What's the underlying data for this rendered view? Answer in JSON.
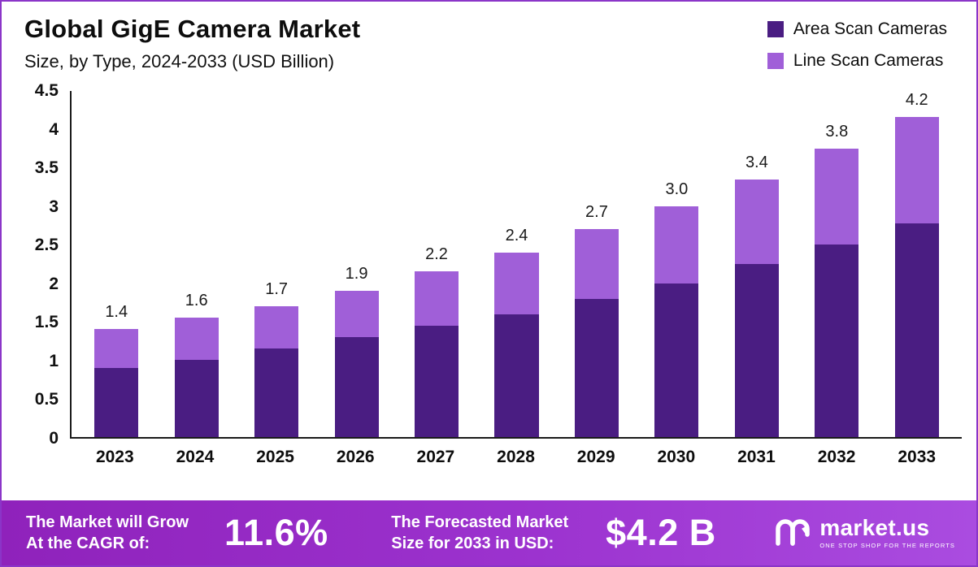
{
  "header": {
    "title": "Global GigE Camera Market",
    "subtitle": "Size, by Type, 2024-2033 (USD Billion)"
  },
  "legend": [
    {
      "label": "Area Scan Cameras",
      "color": "#4a1d82"
    },
    {
      "label": "Line Scan Cameras",
      "color": "#a05fd8"
    }
  ],
  "chart_data": {
    "type": "bar",
    "stacked": true,
    "title": "Global GigE Camera Market Size, by Type, 2024-2033 (USD Billion)",
    "categories": [
      "2023",
      "2024",
      "2025",
      "2026",
      "2027",
      "2028",
      "2029",
      "2030",
      "2031",
      "2032",
      "2033"
    ],
    "series": [
      {
        "name": "Area Scan Cameras",
        "color": "#4a1d82",
        "values": [
          0.9,
          1.0,
          1.15,
          1.3,
          1.45,
          1.6,
          1.8,
          2.0,
          2.25,
          2.5,
          2.8
        ]
      },
      {
        "name": "Line Scan Cameras",
        "color": "#a05fd8",
        "values": [
          0.5,
          0.55,
          0.55,
          0.6,
          0.7,
          0.8,
          0.9,
          1.0,
          1.1,
          1.25,
          1.4
        ]
      }
    ],
    "totals": [
      1.4,
      1.6,
      1.7,
      1.9,
      2.2,
      2.4,
      2.7,
      3.0,
      3.4,
      3.8,
      4.2
    ],
    "total_labels": [
      "1.4",
      "1.6",
      "1.7",
      "1.9",
      "2.2",
      "2.4",
      "2.7",
      "3.0",
      "3.4",
      "3.8",
      "4.2"
    ],
    "xlabel": "",
    "ylabel": "",
    "ylim": [
      0,
      4.5
    ],
    "yticks": [
      0,
      0.5,
      1,
      1.5,
      2,
      2.5,
      3,
      3.5,
      4,
      4.5
    ],
    "ytick_labels": [
      "0",
      "0.5",
      "1",
      "1.5",
      "2",
      "2.5",
      "3",
      "3.5",
      "4",
      "4.5"
    ],
    "grid": false,
    "legend_position": "top-right"
  },
  "footer": {
    "cagr_label_line1": "The Market will Grow",
    "cagr_label_line2": "At the CAGR of:",
    "cagr_value": "11.6%",
    "forecast_label_line1": "The Forecasted Market",
    "forecast_label_line2": "Size for 2033 in USD:",
    "forecast_value": "$4.2 B",
    "brand_name": "market.us",
    "brand_tagline": "ONE STOP SHOP FOR THE REPORTS"
  },
  "colors": {
    "area_scan_bar": "#4a1d82",
    "line_scan_bar": "#a05fd8",
    "footer_gradient_start": "#8f22bb",
    "footer_gradient_end": "#aa4ce0",
    "frame_border": "#8b35c8",
    "axis": "#1a1a1a"
  }
}
